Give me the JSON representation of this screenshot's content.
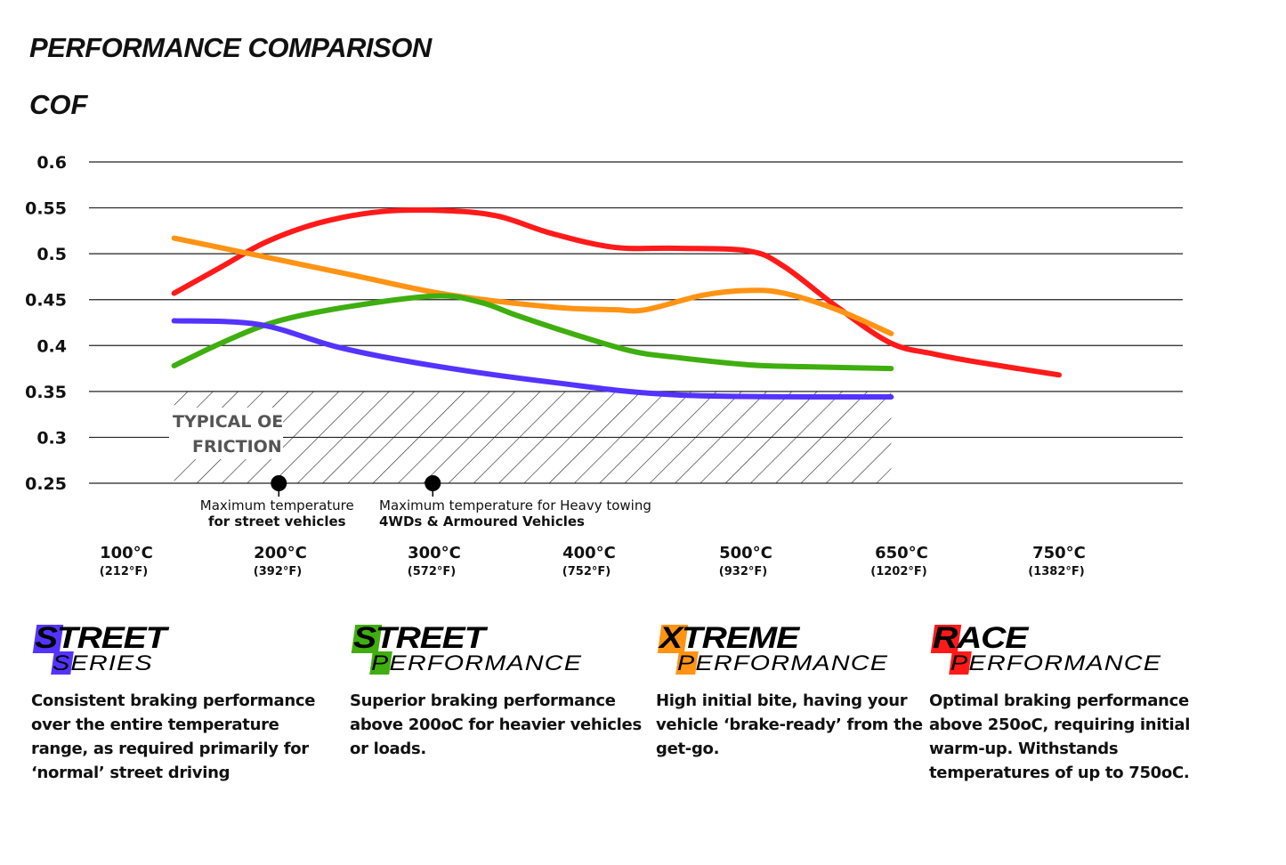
{
  "heading": "PERFORMANCE COMPARISON",
  "chart_data": {
    "type": "line",
    "title": "",
    "ylabel": "COF",
    "xlabel": "",
    "ylim": [
      0.25,
      0.6
    ],
    "yticks": [
      "0.6",
      "0.55",
      "0.5",
      "0.45",
      "0.4",
      "0.35",
      "0.3",
      "0.25"
    ],
    "x_ticks": [
      {
        "value": 100,
        "label": "100°C",
        "sub": "(212°F)"
      },
      {
        "value": 200,
        "label": "200°C",
        "sub": "(392°F)"
      },
      {
        "value": 300,
        "label": "300°C",
        "sub": "(572°F)"
      },
      {
        "value": 400,
        "label": "400°C",
        "sub": "(752°F)"
      },
      {
        "value": 500,
        "label": "500°C",
        "sub": "(932°F)"
      },
      {
        "value": 650,
        "label": "650°C",
        "sub": "(1202°F)"
      },
      {
        "value": 750,
        "label": "750°C",
        "sub": "(1382°F)"
      }
    ],
    "grid": true,
    "series": [
      {
        "color": "#ff1a1a",
        "x": [
          131,
          162,
          191,
          226,
          266,
          307,
          341,
          376,
          416,
          456,
          503,
          537,
          588,
          639,
          670,
          698,
          750
        ],
        "y": [
          0.457,
          0.486,
          0.513,
          0.534,
          0.546,
          0.547,
          0.541,
          0.522,
          0.507,
          0.506,
          0.503,
          0.486,
          0.442,
          0.403,
          0.391,
          0.382,
          0.368
        ]
      },
      {
        "color": "#ff9414",
        "x": [
          131,
          186,
          249,
          307,
          376,
          416,
          436,
          473,
          503,
          537,
          588,
          640
        ],
        "y": [
          0.517,
          0.498,
          0.476,
          0.456,
          0.442,
          0.439,
          0.439,
          0.455,
          0.46,
          0.457,
          0.439,
          0.413
        ]
      },
      {
        "color": "#3fae0f",
        "x": [
          131,
          162,
          197,
          243,
          301,
          330,
          353,
          387,
          427,
          456,
          503,
          555,
          640
        ],
        "y": [
          0.378,
          0.403,
          0.426,
          0.442,
          0.454,
          0.447,
          0.433,
          0.414,
          0.394,
          0.387,
          0.379,
          0.377,
          0.375
        ]
      },
      {
        "color": "#5533ff",
        "x": [
          131,
          186,
          238,
          296,
          376,
          459,
          640
        ],
        "y": [
          0.427,
          0.423,
          0.398,
          0.379,
          0.36,
          0.346,
          0.344
        ]
      }
    ],
    "shaded_region": {
      "label_line1": "TYPICAL OE",
      "label_line2": "FRICTION",
      "x": [
        131,
        640
      ],
      "y": [
        0.25,
        0.35
      ]
    },
    "annotations": [
      {
        "x": 199,
        "y": 0.25,
        "line1": "Maximum temperature",
        "line2": "for street vehicles"
      },
      {
        "x": 299,
        "y": 0.25,
        "line1": "Maximum temperature for Heavy towing",
        "line2": "4WDs & Armoured Vehicles"
      }
    ]
  },
  "legend": [
    {
      "word1": "STREET",
      "word2": "SERIES",
      "color": "#5533ff",
      "description": "Consistent braking performance over the entire temperature range, as required primarily for ‘normal’ street driving"
    },
    {
      "word1": "STREET",
      "word2": "PERFORMANCE",
      "color": "#3fae0f",
      "description": "Superior braking performance above 200oC for heavier vehicles or loads."
    },
    {
      "word1": "XTREME",
      "word2": "PERFORMANCE",
      "color": "#ff9414",
      "description": "High initial bite, having your vehicle ‘brake-ready’ from the get-go."
    },
    {
      "word1": "RACE",
      "word2": "PERFORMANCE",
      "color": "#ff1a1a",
      "description": "Optimal braking performance above 250oC, requiring initial warm-up. Withstands temperatures of up to 750oC."
    }
  ]
}
